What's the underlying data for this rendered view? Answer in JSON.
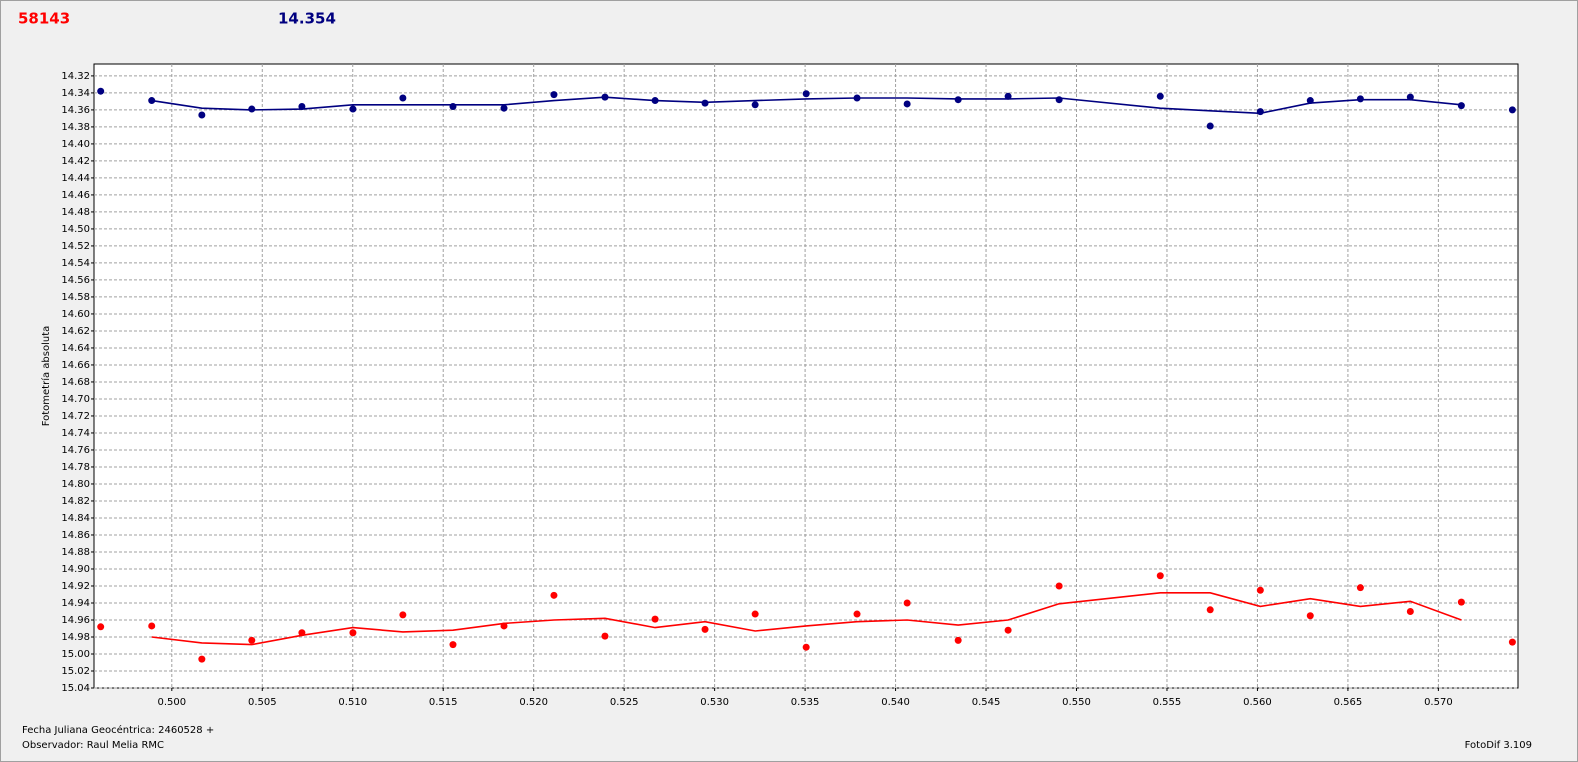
{
  "chart_data": {
    "type": "scatter",
    "y_label": "Fotometría absoluta",
    "x_label": "Fecha Juliana Geocéntrica: 2460528 +",
    "observer": "Observador: Raul Melia RMC",
    "software": "FotoDif 3.109",
    "grid": true,
    "x": [
      0.49607,
      0.49889,
      0.50166,
      0.50442,
      0.50719,
      0.51001,
      0.51277,
      0.51554,
      0.51836,
      0.52112,
      0.52394,
      0.52671,
      0.52947,
      0.53224,
      0.53506,
      0.53787,
      0.54064,
      0.54346,
      0.54622,
      0.54904,
      0.55463,
      0.55739,
      0.56016,
      0.56292,
      0.56569,
      0.56845,
      0.57127,
      0.57409
    ],
    "series": [
      {
        "name": "58143",
        "color": "#ff0000",
        "values": [
          14.968,
          14.967,
          15.006,
          14.984,
          14.975,
          14.975,
          14.954,
          14.989,
          14.967,
          14.931,
          14.979,
          14.959,
          14.971,
          14.953,
          14.992,
          14.953,
          14.94,
          14.984,
          14.972,
          14.92,
          14.908,
          14.948,
          14.925,
          14.955,
          14.922,
          14.95,
          14.939,
          14.986
        ],
        "trend": [
          null,
          14.98,
          14.987,
          14.989,
          14.978,
          14.969,
          14.974,
          14.972,
          14.964,
          14.96,
          14.958,
          14.969,
          14.962,
          14.973,
          14.967,
          14.962,
          14.96,
          14.966,
          14.96,
          14.941,
          14.928,
          14.928,
          14.944,
          14.935,
          14.944,
          14.938,
          14.96,
          null
        ]
      },
      {
        "name": "14.354",
        "color": "#000080",
        "values": [
          14.338,
          14.349,
          14.366,
          14.359,
          14.356,
          14.359,
          14.346,
          14.356,
          14.358,
          14.342,
          14.345,
          14.349,
          14.352,
          14.354,
          14.341,
          14.346,
          14.353,
          14.348,
          14.344,
          14.348,
          14.344,
          14.379,
          14.362,
          14.349,
          14.347,
          14.345,
          14.355,
          14.36
        ],
        "trend": [
          null,
          14.349,
          14.358,
          14.36,
          14.359,
          14.354,
          14.354,
          14.354,
          14.354,
          14.349,
          14.345,
          14.349,
          14.351,
          14.349,
          14.347,
          14.346,
          14.346,
          14.347,
          14.347,
          14.346,
          14.358,
          14.361,
          14.364,
          14.352,
          14.348,
          14.348,
          14.354,
          null
        ]
      }
    ],
    "xlim": [
      0.4957,
      0.5744
    ],
    "ylim": [
      15.04,
      14.306
    ],
    "xticks": [
      {
        "value": 0.5,
        "label": "0.500"
      },
      {
        "value": 0.505,
        "label": "0.505"
      },
      {
        "value": 0.51,
        "label": "0.510"
      },
      {
        "value": 0.515,
        "label": "0.515"
      },
      {
        "value": 0.52,
        "label": "0.520"
      },
      {
        "value": 0.525,
        "label": "0.525"
      },
      {
        "value": 0.53,
        "label": "0.530"
      },
      {
        "value": 0.535,
        "label": "0.535"
      },
      {
        "value": 0.54,
        "label": "0.540"
      },
      {
        "value": 0.545,
        "label": "0.545"
      },
      {
        "value": 0.55,
        "label": "0.550"
      },
      {
        "value": 0.555,
        "label": "0.555"
      },
      {
        "value": 0.56,
        "label": "0.560"
      },
      {
        "value": 0.565,
        "label": "0.565"
      },
      {
        "value": 0.57,
        "label": "0.570"
      }
    ],
    "yticks": [
      14.32,
      14.34,
      14.36,
      14.38,
      {
        "value": 14.4,
        "label": "14.40"
      },
      14.42,
      14.44,
      14.46,
      14.48,
      {
        "value": 14.5,
        "label": "14.50"
      },
      14.52,
      14.54,
      14.56,
      14.58,
      {
        "value": 14.6,
        "label": "14.60"
      },
      14.62,
      14.64,
      14.66,
      14.68,
      {
        "value": 14.7,
        "label": "14.70"
      },
      14.72,
      14.74,
      14.76,
      14.78,
      {
        "value": 14.8,
        "label": "14.80"
      },
      14.82,
      14.84,
      14.86,
      14.88,
      {
        "value": 14.9,
        "label": "14.90"
      },
      14.92,
      14.94,
      14.96,
      14.98,
      {
        "value": 15.0,
        "label": "15.00"
      },
      15.02,
      15.04
    ]
  }
}
